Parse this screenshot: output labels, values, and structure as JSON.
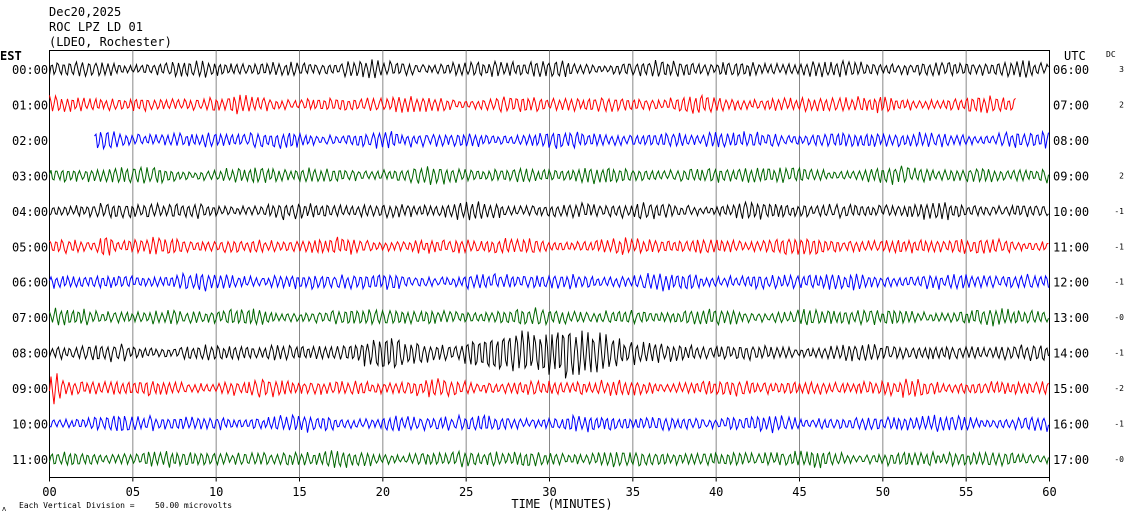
{
  "header": {
    "date": "Dec20,2025",
    "station": "ROC LPZ LD 01",
    "network": "(LDEO, Rochester)"
  },
  "labels": {
    "left_tz": "EST",
    "right_tz": "UTC",
    "dc": "DC",
    "xlabel": "TIME (MINUTES)",
    "footer_prefix": "Each Vertical Division =",
    "footer_value": "50.00 microvolts"
  },
  "chart_data": {
    "type": "line",
    "title": "ROC LPZ LD 01",
    "xlabel": "TIME (MINUTES)",
    "ylabel": "",
    "xlim": [
      0,
      60
    ],
    "x_ticks": [
      "00",
      "05",
      "10",
      "15",
      "20",
      "25",
      "30",
      "35",
      "40",
      "45",
      "50",
      "55",
      "60"
    ],
    "grid": true,
    "colors": [
      "#000000",
      "#ff0000",
      "#0000ff",
      "#006600"
    ],
    "rows": [
      {
        "est": "00:00",
        "utc": "06:00",
        "dc": "3",
        "color": "#000000",
        "start": 0,
        "end": 60
      },
      {
        "est": "01:00",
        "utc": "07:00",
        "dc": "2",
        "color": "#ff0000",
        "start": 0,
        "end": 58
      },
      {
        "est": "02:00",
        "utc": "08:00",
        "dc": "",
        "color": "#0000ff",
        "start": 2.7,
        "end": 60
      },
      {
        "est": "03:00",
        "utc": "09:00",
        "dc": "2",
        "color": "#006600",
        "start": 0,
        "end": 60
      },
      {
        "est": "04:00",
        "utc": "10:00",
        "dc": "-1",
        "color": "#000000",
        "start": 0,
        "end": 60
      },
      {
        "est": "05:00",
        "utc": "11:00",
        "dc": "-1",
        "color": "#ff0000",
        "start": 0,
        "end": 60
      },
      {
        "est": "06:00",
        "utc": "12:00",
        "dc": "-1",
        "color": "#0000ff",
        "start": 0,
        "end": 60
      },
      {
        "est": "07:00",
        "utc": "13:00",
        "dc": "-0",
        "color": "#006600",
        "start": 0,
        "end": 60
      },
      {
        "est": "08:00",
        "utc": "14:00",
        "dc": "-1",
        "color": "#000000",
        "start": 0,
        "end": 60
      },
      {
        "est": "09:00",
        "utc": "15:00",
        "dc": "-2",
        "color": "#ff0000",
        "start": 0,
        "end": 60
      },
      {
        "est": "10:00",
        "utc": "16:00",
        "dc": "-1",
        "color": "#0000ff",
        "start": 0,
        "end": 60
      },
      {
        "est": "11:00",
        "utc": "17:00",
        "dc": "-0",
        "color": "#006600",
        "start": 0,
        "end": 60
      }
    ],
    "events": [
      {
        "row": 8,
        "minute": 20,
        "width": 4,
        "amplitude": 1.3
      },
      {
        "row": 8,
        "minute": 27,
        "width": 3,
        "amplitude": 2.4
      },
      {
        "row": 8,
        "minute": 30.5,
        "width": 3.5,
        "amplitude": 2.8
      },
      {
        "row": 8,
        "minute": 34,
        "width": 4,
        "amplitude": 1.4
      },
      {
        "row": 9,
        "minute": 0.3,
        "width": 0.5,
        "amplitude": 1.8
      },
      {
        "row": 5,
        "minute": 3.4,
        "width": 0.6,
        "amplitude": 1.5
      }
    ]
  }
}
